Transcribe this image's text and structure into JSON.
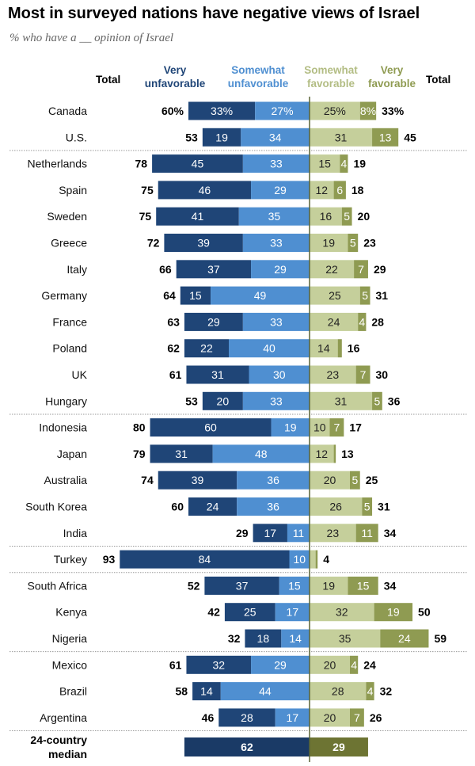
{
  "title": "Most in surveyed nations have negative views of Israel",
  "subtitle": "% who have a __ opinion of Israel",
  "colors": {
    "very_unfav": "#1f4577",
    "somewhat_unfav": "#4f8fd1",
    "somewhat_fav": "#c5cf9b",
    "very_fav": "#8f9b52",
    "median_unfav": "#1a3a66",
    "median_fav": "#6d7433",
    "divider": "#999999",
    "axis": "#5a6437"
  },
  "chart_data": {
    "type": "bar",
    "orientation": "horizontal-diverging",
    "headers": {
      "total_left": "Total",
      "very_unfav": [
        "Very",
        "unfavorable"
      ],
      "somewhat_unfav": [
        "Somewhat",
        "unfavorable"
      ],
      "somewhat_fav": [
        "Somewhat",
        "favorable"
      ],
      "very_fav": [
        "Very",
        "favorable"
      ],
      "total_right": "Total"
    },
    "rows": [
      {
        "country": "Canada",
        "very_unfav": 33,
        "somewhat_unfav": 27,
        "somewhat_fav": 25,
        "very_fav": 8,
        "total_unfav": 60,
        "total_fav": 33,
        "pct": true
      },
      {
        "country": "U.S.",
        "very_unfav": 19,
        "somewhat_unfav": 34,
        "somewhat_fav": 31,
        "very_fav": 13,
        "total_unfav": 53,
        "total_fav": 45
      },
      {
        "country": "Netherlands",
        "very_unfav": 45,
        "somewhat_unfav": 33,
        "somewhat_fav": 15,
        "very_fav": 4,
        "total_unfav": 78,
        "total_fav": 19
      },
      {
        "country": "Spain",
        "very_unfav": 46,
        "somewhat_unfav": 29,
        "somewhat_fav": 12,
        "very_fav": 6,
        "total_unfav": 75,
        "total_fav": 18
      },
      {
        "country": "Sweden",
        "very_unfav": 41,
        "somewhat_unfav": 35,
        "somewhat_fav": 16,
        "very_fav": 5,
        "total_unfav": 75,
        "total_fav": 20
      },
      {
        "country": "Greece",
        "very_unfav": 39,
        "somewhat_unfav": 33,
        "somewhat_fav": 19,
        "very_fav": 5,
        "total_unfav": 72,
        "total_fav": 23
      },
      {
        "country": "Italy",
        "very_unfav": 37,
        "somewhat_unfav": 29,
        "somewhat_fav": 22,
        "very_fav": 7,
        "total_unfav": 66,
        "total_fav": 29
      },
      {
        "country": "Germany",
        "very_unfav": 15,
        "somewhat_unfav": 49,
        "somewhat_fav": 25,
        "very_fav": 5,
        "total_unfav": 64,
        "total_fav": 31
      },
      {
        "country": "France",
        "very_unfav": 29,
        "somewhat_unfav": 33,
        "somewhat_fav": 24,
        "very_fav": 4,
        "total_unfav": 63,
        "total_fav": 28
      },
      {
        "country": "Poland",
        "very_unfav": 22,
        "somewhat_unfav": 40,
        "somewhat_fav": 14,
        "very_fav": 2,
        "total_unfav": 62,
        "total_fav": 16,
        "hide_vf_label": true
      },
      {
        "country": "UK",
        "very_unfav": 31,
        "somewhat_unfav": 30,
        "somewhat_fav": 23,
        "very_fav": 7,
        "total_unfav": 61,
        "total_fav": 30
      },
      {
        "country": "Hungary",
        "very_unfav": 20,
        "somewhat_unfav": 33,
        "somewhat_fav": 31,
        "very_fav": 5,
        "total_unfav": 53,
        "total_fav": 36
      },
      {
        "country": "Indonesia",
        "very_unfav": 60,
        "somewhat_unfav": 19,
        "somewhat_fav": 10,
        "very_fav": 7,
        "total_unfav": 80,
        "total_fav": 17
      },
      {
        "country": "Japan",
        "very_unfav": 31,
        "somewhat_unfav": 48,
        "somewhat_fav": 12,
        "very_fav": 1,
        "total_unfav": 79,
        "total_fav": 13,
        "hide_vf_label": true
      },
      {
        "country": "Australia",
        "very_unfav": 39,
        "somewhat_unfav": 36,
        "somewhat_fav": 20,
        "very_fav": 5,
        "total_unfav": 74,
        "total_fav": 25
      },
      {
        "country": "South Korea",
        "very_unfav": 24,
        "somewhat_unfav": 36,
        "somewhat_fav": 26,
        "very_fav": 5,
        "total_unfav": 60,
        "total_fav": 31
      },
      {
        "country": "India",
        "very_unfav": 17,
        "somewhat_unfav": 11,
        "somewhat_fav": 23,
        "very_fav": 11,
        "total_unfav": 29,
        "total_fav": 34
      },
      {
        "country": "Turkey",
        "very_unfav": 84,
        "somewhat_unfav": 10,
        "somewhat_fav": 3,
        "very_fav": 1,
        "total_unfav": 93,
        "total_fav": 4,
        "hide_sf_label": true,
        "hide_vf_label": true
      },
      {
        "country": "South Africa",
        "very_unfav": 37,
        "somewhat_unfav": 15,
        "somewhat_fav": 19,
        "very_fav": 15,
        "total_unfav": 52,
        "total_fav": 34
      },
      {
        "country": "Kenya",
        "very_unfav": 25,
        "somewhat_unfav": 17,
        "somewhat_fav": 32,
        "very_fav": 19,
        "total_unfav": 42,
        "total_fav": 50
      },
      {
        "country": "Nigeria",
        "very_unfav": 18,
        "somewhat_unfav": 14,
        "somewhat_fav": 35,
        "very_fav": 24,
        "total_unfav": 32,
        "total_fav": 59
      },
      {
        "country": "Mexico",
        "very_unfav": 32,
        "somewhat_unfav": 29,
        "somewhat_fav": 20,
        "very_fav": 4,
        "total_unfav": 61,
        "total_fav": 24
      },
      {
        "country": "Brazil",
        "very_unfav": 14,
        "somewhat_unfav": 44,
        "somewhat_fav": 28,
        "very_fav": 4,
        "total_unfav": 58,
        "total_fav": 32
      },
      {
        "country": "Argentina",
        "very_unfav": 28,
        "somewhat_unfav": 17,
        "somewhat_fav": 20,
        "very_fav": 7,
        "total_unfav": 46,
        "total_fav": 26
      }
    ],
    "group_breaks_after": [
      "U.S.",
      "Hungary",
      "India",
      "Turkey",
      "Nigeria",
      "Argentina"
    ],
    "median": {
      "label_lines": [
        "24-country",
        "median"
      ],
      "unfavorable": 62,
      "favorable": 29
    }
  }
}
